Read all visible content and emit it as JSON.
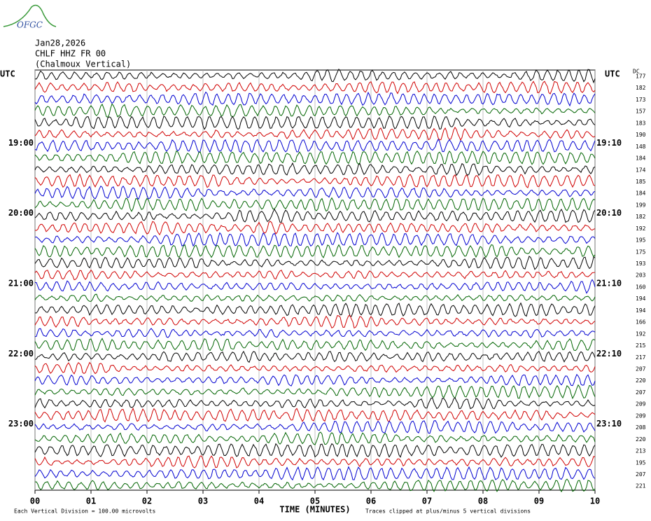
{
  "logo": "OFGC",
  "header": {
    "date": "Jan28,2026",
    "station": "CHLF HHZ FR 00",
    "location": "(Chalmoux Vertical)"
  },
  "left_unit": "UTC",
  "right_unit": "UTC",
  "dc_header": "DC",
  "left_hours": [
    "19:00",
    "20:00",
    "21:00",
    "22:00",
    "23:00"
  ],
  "right_hours": [
    "19:10",
    "20:10",
    "21:10",
    "22:10",
    "23:10"
  ],
  "dc_values": [
    "177",
    "182",
    "173",
    "157",
    "183",
    "190",
    "148",
    "184",
    "174",
    "185",
    "184",
    "199",
    "182",
    "192",
    "195",
    "175",
    "193",
    "203",
    "160",
    "194",
    "194",
    "166",
    "192",
    "215",
    "217",
    "207",
    "220",
    "207",
    "209",
    "209",
    "208",
    "220",
    "213",
    "195",
    "207",
    "221"
  ],
  "x_ticks": [
    "00",
    "01",
    "02",
    "03",
    "04",
    "05",
    "06",
    "07",
    "08",
    "09",
    "10"
  ],
  "x_label": "TIME (MINUTES)",
  "footer_left": "Each Vertical Division =  100.00 microvolts",
  "footer_right": "Traces clipped at plus/minus 5 vertical divisions"
}
